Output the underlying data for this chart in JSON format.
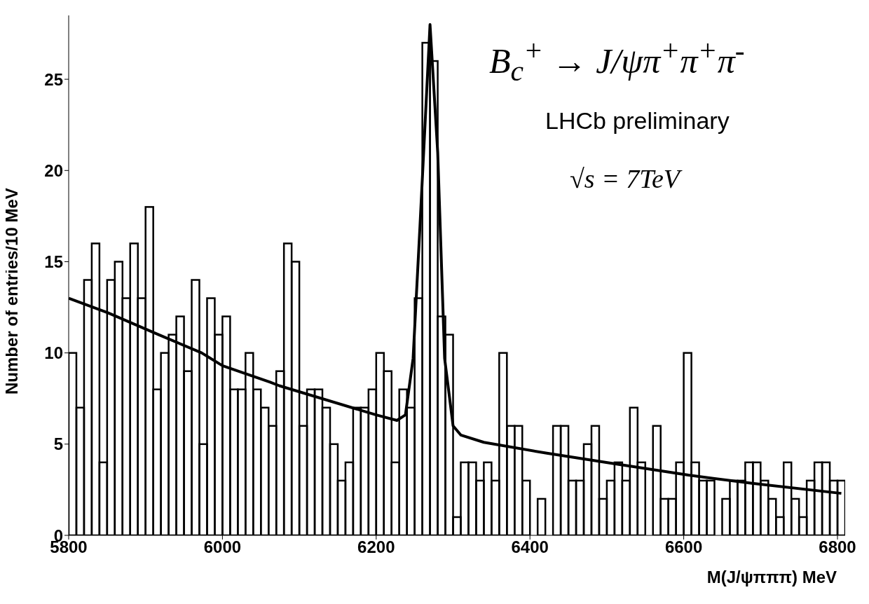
{
  "chart_data": {
    "type": "histogram",
    "xlabel": "M(J/ψπππ) MeV",
    "ylabel": "Number of entries/10 MeV",
    "annotations": [
      "B$_{c}$$^{+}$ → J/ψπ$^{+}$π$^{+}$π$^{-}$",
      "LHCb preliminary",
      "√s = 7TeV"
    ],
    "bins": [
      5800,
      5810,
      5820,
      5830,
      5840,
      5850,
      5860,
      5870,
      5880,
      5890,
      5900,
      5910,
      5920,
      5930,
      5940,
      5950,
      5960,
      5970,
      5980,
      5990,
      6000,
      6010,
      6020,
      6030,
      6040,
      6050,
      6060,
      6070,
      6080,
      6090,
      6100,
      6110,
      6120,
      6130,
      6140,
      6150,
      6160,
      6170,
      6180,
      6190,
      6200,
      6210,
      6220,
      6230,
      6240,
      6250,
      6260,
      6270,
      6280,
      6290,
      6300,
      6310,
      6320,
      6330,
      6340,
      6350,
      6360,
      6370,
      6380,
      6390,
      6400,
      6410,
      6420,
      6430,
      6440,
      6450,
      6460,
      6470,
      6480,
      6490,
      6500,
      6510,
      6520,
      6530,
      6540,
      6550,
      6560,
      6570,
      6580,
      6590,
      6600,
      6610,
      6620,
      6630,
      6640,
      6650,
      6660,
      6670,
      6680,
      6690,
      6700,
      6710,
      6720,
      6730,
      6740,
      6750,
      6760,
      6770,
      6780,
      6790,
      6800,
      6810
    ],
    "series": [
      {
        "color": "#000000",
        "values": [
          10,
          7,
          14,
          16,
          4,
          14,
          15,
          13,
          16,
          13,
          18,
          8,
          10,
          11,
          12,
          9,
          14,
          5,
          13,
          11,
          12,
          8,
          8,
          10,
          8,
          7,
          6,
          9,
          16,
          15,
          6,
          8,
          8,
          7,
          5,
          3,
          4,
          7,
          7,
          8,
          10,
          9,
          4,
          8,
          7,
          13,
          27,
          26,
          12,
          11,
          1,
          4,
          4,
          3,
          4,
          3,
          10,
          6,
          6,
          3,
          0,
          2,
          0,
          6,
          6,
          3,
          3,
          5,
          6,
          2,
          3,
          4,
          3,
          7,
          4,
          0,
          6,
          2,
          2,
          4,
          10,
          4,
          3,
          3,
          0,
          2,
          3,
          3,
          4,
          4,
          3,
          2,
          1,
          4,
          2,
          1,
          3,
          4,
          4,
          3,
          3
        ]
      },
      {
        "type": "line",
        "color": "#000000",
        "x": [
          5800,
          5851,
          5917,
          5973,
          6000,
          6062,
          6074,
          6200,
          6227,
          6238,
          6248,
          6257,
          6270,
          6280,
          6289,
          6300,
          6310,
          6340,
          6422,
          6514,
          6606,
          6689,
          6805
        ],
        "values": [
          13.0,
          12.2,
          11.0,
          10.0,
          9.3,
          8.4,
          8.2,
          6.6,
          6.3,
          6.6,
          9.7,
          17,
          28,
          21,
          9.7,
          6.0,
          5.5,
          5.1,
          4.5,
          3.9,
          3.3,
          2.85,
          2.3
        ]
      }
    ],
    "xlim": [
      5800,
      6810
    ],
    "xticks": [
      5800,
      6000,
      6200,
      6400,
      6600,
      6800
    ],
    "ylim": [
      0,
      28.5
    ],
    "yticks": [
      0,
      5,
      10,
      15,
      20,
      25
    ]
  }
}
